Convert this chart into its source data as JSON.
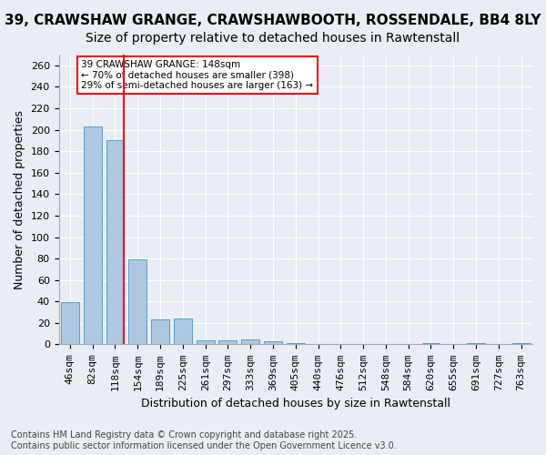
{
  "title1": "39, CRAWSHAW GRANGE, CRAWSHAWBOOTH, ROSSENDALE, BB4 8LY",
  "title2": "Size of property relative to detached houses in Rawtenstall",
  "xlabel": "Distribution of detached houses by size in Rawtenstall",
  "ylabel": "Number of detached properties",
  "categories": [
    "46sqm",
    "82sqm",
    "118sqm",
    "154sqm",
    "189sqm",
    "225sqm",
    "261sqm",
    "297sqm",
    "333sqm",
    "369sqm",
    "405sqm",
    "440sqm",
    "476sqm",
    "512sqm",
    "548sqm",
    "584sqm",
    "620sqm",
    "655sqm",
    "691sqm",
    "727sqm",
    "763sqm"
  ],
  "values": [
    39,
    203,
    190,
    79,
    23,
    24,
    4,
    4,
    5,
    3,
    1,
    0,
    0,
    0,
    0,
    0,
    1,
    0,
    1,
    0,
    1
  ],
  "bar_color": "#adc8e0",
  "bar_edge_color": "#5a9ec9",
  "vline_x": 2,
  "vline_color": "red",
  "annotation_text": "39 CRAWSHAW GRANGE: 148sqm\n← 70% of detached houses are smaller (398)\n29% of semi-detached houses are larger (163) →",
  "annotation_box_color": "white",
  "annotation_box_edge_color": "red",
  "ylim": [
    0,
    270
  ],
  "yticks": [
    0,
    20,
    40,
    60,
    80,
    100,
    120,
    140,
    160,
    180,
    200,
    220,
    240,
    260
  ],
  "bg_color": "#e8eef4",
  "footer": "Contains HM Land Registry data © Crown copyright and database right 2025.\nContains public sector information licensed under the Open Government Licence v3.0.",
  "title1_fontsize": 11,
  "title2_fontsize": 10,
  "xlabel_fontsize": 9,
  "ylabel_fontsize": 9,
  "tick_fontsize": 8,
  "footer_fontsize": 7
}
